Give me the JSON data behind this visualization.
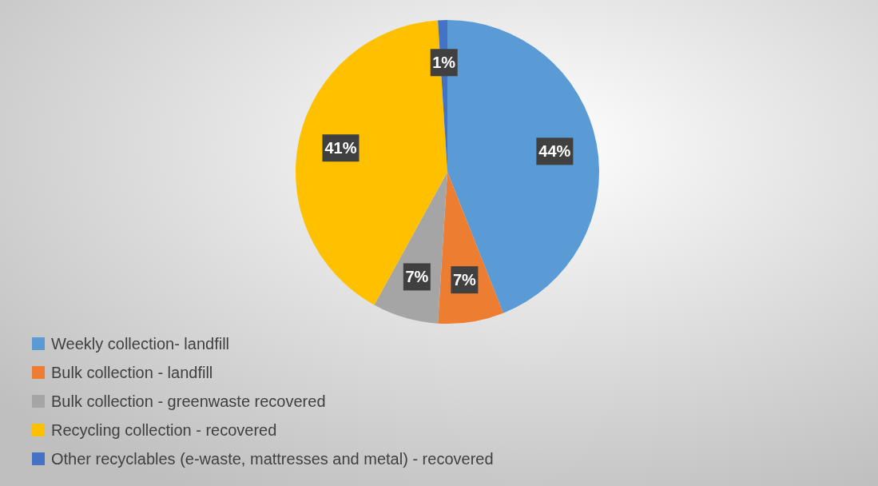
{
  "chart_data": {
    "type": "pie",
    "categories": [
      "Weekly collection- landfill",
      "Bulk collection - landfill",
      "Bulk collection - greenwaste recovered",
      "Recycling collection - recovered",
      "Other recyclables (e-waste, mattresses and metal) - recovered"
    ],
    "values": [
      44,
      7,
      7,
      41,
      1
    ],
    "colors": [
      "#5b9bd5",
      "#ed7d31",
      "#a5a5a5",
      "#ffc000",
      "#4472c4"
    ],
    "value_labels": [
      "44%",
      "7%",
      "7%",
      "41%",
      "1%"
    ],
    "legend": "bottom left"
  }
}
